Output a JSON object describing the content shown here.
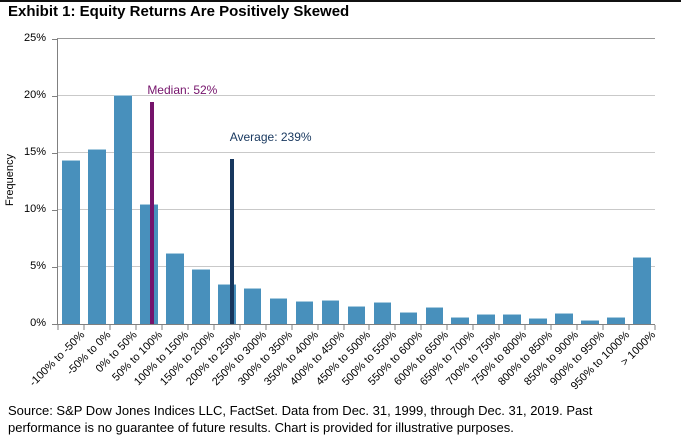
{
  "title": "Exhibit 1: Equity Returns Are Positively Skewed",
  "source": "Source: S&P Dow Jones Indices LLC, FactSet.  Data from Dec. 31, 1999, through Dec. 31, 2019.  Past performance is no guarantee of future results.  Chart is provided for illustrative purposes.",
  "chart_data": {
    "type": "bar",
    "title": "Exhibit 1: Equity Returns Are Positively Skewed",
    "xlabel": "",
    "ylabel": "Frequency",
    "ylim": [
      0,
      25
    ],
    "yticks": [
      0,
      5,
      10,
      15,
      20,
      25
    ],
    "ytick_suffix": "%",
    "grid": true,
    "legend": "none",
    "categories": [
      "-100% to -50%",
      "-50% to 0%",
      "0% to 50%",
      "50% to 100%",
      "100% to 150%",
      "150% to 200%",
      "200% to 250%",
      "250% to 300%",
      "300% to 350%",
      "350% to 400%",
      "400% to 450%",
      "450% to 500%",
      "500% to 550%",
      "550% to 600%",
      "600% to 650%",
      "650% to 700%",
      "700% to 750%",
      "750% to 800%",
      "800% to 850%",
      "850% to 900%",
      "900% to 950%",
      "950% to 1000%",
      "> 1000%"
    ],
    "values": [
      14.3,
      15.3,
      20.0,
      10.4,
      6.1,
      4.7,
      3.4,
      3.1,
      2.2,
      1.9,
      2.0,
      1.5,
      1.8,
      1.0,
      1.4,
      0.5,
      0.8,
      0.8,
      0.4,
      0.9,
      0.3,
      0.5,
      5.8
    ],
    "annotations": [
      {
        "name": "median",
        "label": "Median: 52%",
        "value": 52,
        "line_height": 19.5,
        "x_percent": 15.8,
        "color": "#75136b"
      },
      {
        "name": "average",
        "label": "Average: 239%",
        "value": 239,
        "line_height": 14.5,
        "x_percent": 29.1,
        "color": "#17375e"
      }
    ],
    "colors": {
      "bar": "#4890bc",
      "bar_highlight": "#a7cbdf",
      "gridline": "#c9c9c9",
      "axis": "#808080"
    }
  }
}
